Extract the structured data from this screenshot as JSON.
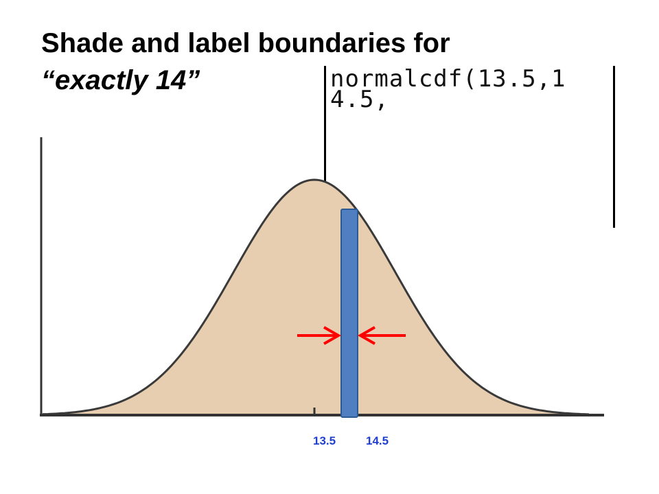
{
  "title": {
    "line1": "Shade and label boundaries for",
    "line2": "“exactly 14”"
  },
  "calculator": {
    "line1": "normalcdf(13.5,1",
    "line2": "4.5,"
  },
  "labels": {
    "lower": "13.5",
    "upper": "14.5"
  },
  "colors": {
    "curve_fill": "#e8ceb0",
    "curve_stroke": "#3a3a3a",
    "bar_fill": "#4f7fc0",
    "bar_stroke": "#2e5a94",
    "arrow": "#ff0000",
    "label": "#1f3fd0"
  },
  "icons": {
    "left_arrow": "arrow-right-icon",
    "right_arrow": "arrow-left-icon"
  }
}
